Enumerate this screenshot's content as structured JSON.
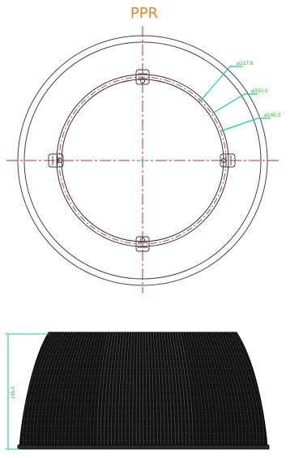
{
  "title": "PPR",
  "top_view": {
    "dimensions": [
      "ø217.6",
      "ø320.0",
      "ø195.3"
    ],
    "colors": {
      "outline": "#444444",
      "centerline": "#cc2244",
      "dimension": "#22bb22"
    }
  },
  "side_view": {
    "height_label": "165.0",
    "colors": {
      "body": "#111111",
      "dimension": "#22bb22"
    }
  }
}
